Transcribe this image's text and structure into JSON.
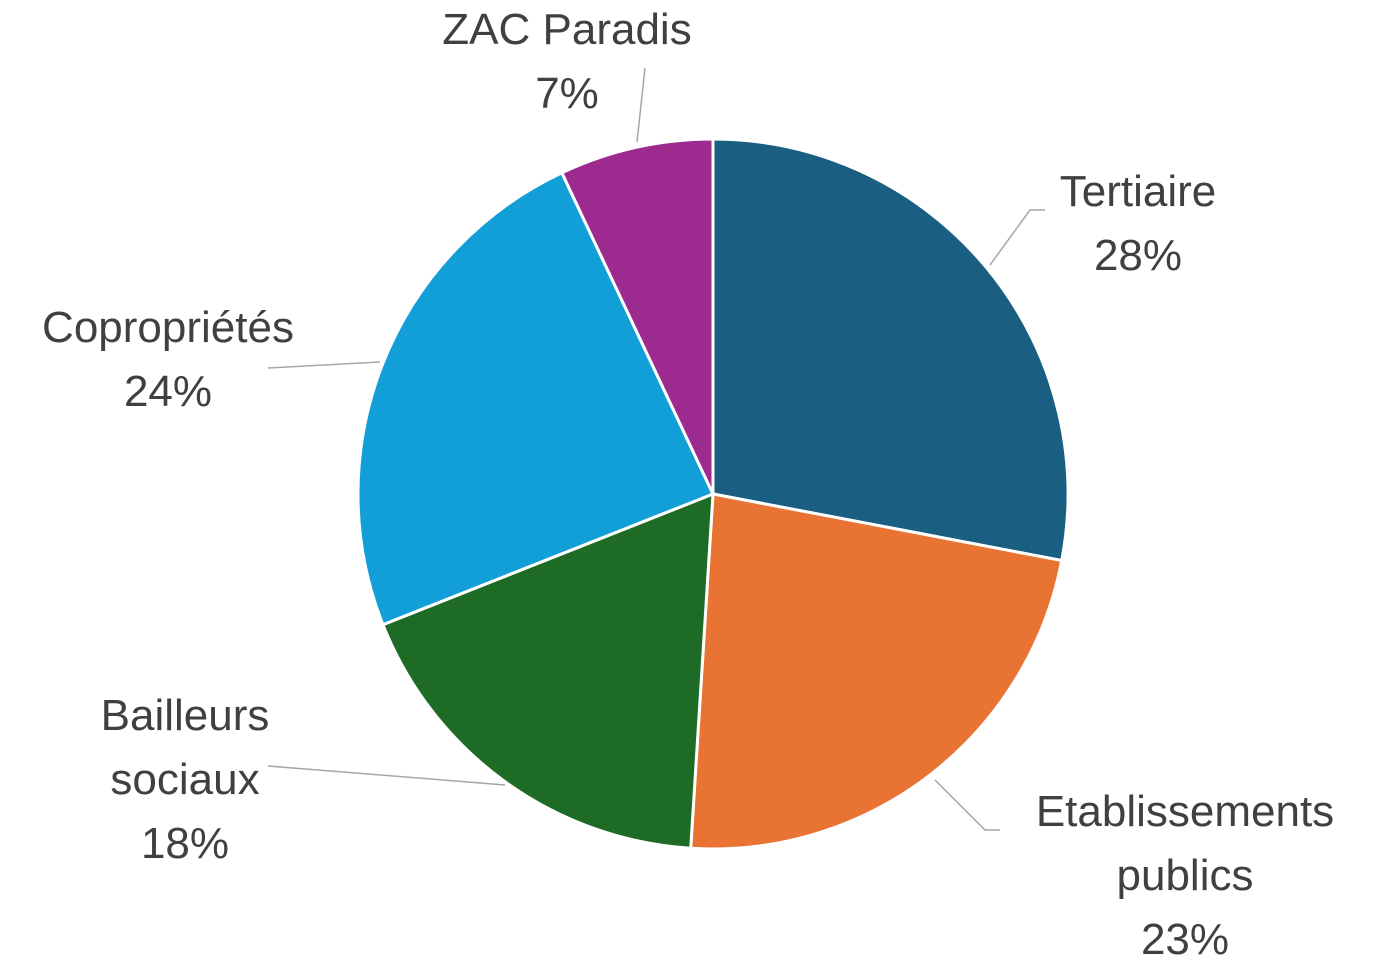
{
  "chart_data": {
    "type": "pie",
    "categories": [
      "Tertiaire",
      "Etablissements publics",
      "Bailleurs sociaux",
      "Copropriétés",
      "ZAC Paradis"
    ],
    "values": [
      28,
      23,
      18,
      24,
      7
    ],
    "value_labels": [
      "28%",
      "23%",
      "18%",
      "24%",
      "7%"
    ],
    "colors": [
      "#1a5f82",
      "#e97333",
      "#1e6b26",
      "#129ed6",
      "#9c2a8f"
    ]
  }
}
